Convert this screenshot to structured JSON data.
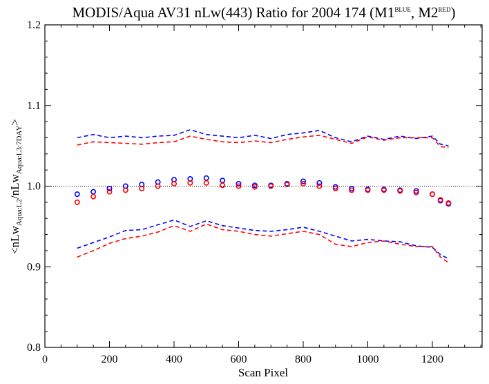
{
  "chart_data": {
    "type": "scatter",
    "title": {
      "main": "MODIS/Aqua AV31 nLw(443) Ratio for 2004 174 (M1",
      "sup1": "BLUE",
      "mid": ", M2",
      "sup2": "RED",
      "end": ")"
    },
    "xlabel": "Scan Pixel",
    "ylabel": {
      "pre1": "<nLw",
      "sub1": "Aqua:L2",
      "pre2": "/nLw",
      "sub2": "Aqua:L3:7DAY",
      "post": ">"
    },
    "xlim": [
      0,
      1354
    ],
    "ylim": [
      0.8,
      1.2
    ],
    "xticks": [
      0,
      200,
      400,
      600,
      800,
      1000,
      1200
    ],
    "xtick_labels": [
      "0",
      "200",
      "400",
      "600",
      "800",
      "1000",
      "1200"
    ],
    "yticks": [
      0.8,
      0.9,
      1.0,
      1.1,
      1.2
    ],
    "ytick_labels": [
      "0.8",
      "0.9",
      "1.0",
      "1.1",
      "1.2"
    ],
    "reference_line": {
      "y": 1.0,
      "style": "dotted"
    },
    "grid": false,
    "legend": "none",
    "colors": {
      "M1": "#0000ff",
      "M2": "#ff0000",
      "axes": "#000000"
    },
    "x": [
      100,
      150,
      200,
      250,
      300,
      350,
      400,
      450,
      500,
      550,
      600,
      650,
      700,
      750,
      800,
      850,
      900,
      950,
      1000,
      1050,
      1100,
      1150,
      1200,
      1225,
      1250
    ],
    "series": [
      {
        "name": "M1",
        "role": "mean",
        "style": "points",
        "values": [
          0.99,
          0.993,
          0.997,
          1.0,
          1.002,
          1.005,
          1.008,
          1.009,
          1.01,
          1.007,
          1.003,
          1.001,
          1.001,
          1.003,
          1.006,
          1.004,
          0.999,
          0.997,
          0.996,
          0.996,
          0.995,
          0.994,
          0.99,
          0.982,
          0.978
        ]
      },
      {
        "name": "M2",
        "role": "mean",
        "style": "points",
        "values": [
          0.98,
          0.987,
          0.993,
          0.995,
          0.997,
          1.0,
          1.003,
          1.004,
          1.004,
          1.001,
          1.0,
          0.999,
          1.0,
          1.002,
          1.003,
          1.0,
          0.997,
          0.995,
          0.995,
          0.995,
          0.994,
          0.992,
          0.99,
          0.983,
          0.979
        ]
      },
      {
        "name": "M1",
        "role": "upper",
        "style": "dashed",
        "values": [
          1.06,
          1.064,
          1.06,
          1.062,
          1.06,
          1.062,
          1.063,
          1.07,
          1.064,
          1.062,
          1.06,
          1.063,
          1.059,
          1.064,
          1.066,
          1.069,
          1.06,
          1.055,
          1.062,
          1.058,
          1.062,
          1.059,
          1.062,
          1.052,
          1.05
        ]
      },
      {
        "name": "M2",
        "role": "upper",
        "style": "dashed",
        "values": [
          1.051,
          1.055,
          1.054,
          1.053,
          1.052,
          1.054,
          1.055,
          1.062,
          1.058,
          1.055,
          1.054,
          1.056,
          1.054,
          1.058,
          1.061,
          1.063,
          1.058,
          1.053,
          1.061,
          1.057,
          1.06,
          1.06,
          1.06,
          1.049,
          1.048
        ]
      },
      {
        "name": "M1",
        "role": "lower",
        "style": "dashed",
        "values": [
          0.923,
          0.93,
          0.937,
          0.945,
          0.946,
          0.952,
          0.958,
          0.95,
          0.957,
          0.951,
          0.948,
          0.945,
          0.944,
          0.946,
          0.949,
          0.944,
          0.938,
          0.932,
          0.934,
          0.932,
          0.931,
          0.926,
          0.924,
          0.915,
          0.91
        ]
      },
      {
        "name": "M2",
        "role": "lower",
        "style": "dashed",
        "values": [
          0.912,
          0.92,
          0.929,
          0.935,
          0.938,
          0.943,
          0.951,
          0.944,
          0.953,
          0.946,
          0.944,
          0.94,
          0.938,
          0.941,
          0.944,
          0.94,
          0.928,
          0.925,
          0.93,
          0.932,
          0.928,
          0.925,
          0.925,
          0.912,
          0.905
        ]
      }
    ]
  }
}
